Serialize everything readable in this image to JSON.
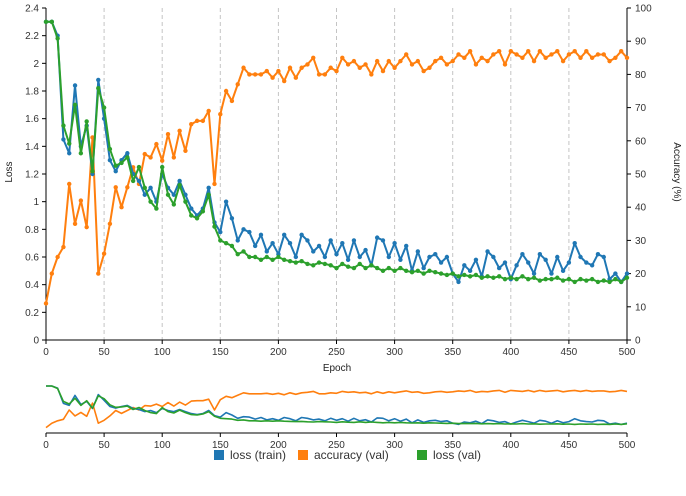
{
  "chart_data": {
    "type": "line",
    "title": "",
    "xlabel": "Epoch",
    "ylabel_left": "Loss",
    "ylabel_right": "Accuracy (%)",
    "xlim": [
      0,
      500
    ],
    "ylim_left": [
      0,
      2.4
    ],
    "ylim_right": [
      0,
      100
    ],
    "x_ticks": [
      0,
      50,
      100,
      150,
      200,
      250,
      300,
      350,
      400,
      450,
      500
    ],
    "y_left_ticks": [
      0,
      0.2,
      0.4,
      0.6,
      0.8,
      1,
      1.2,
      1.4,
      1.6,
      1.8,
      2,
      2.2,
      2.4
    ],
    "y_right_ticks": [
      0,
      10,
      20,
      30,
      40,
      50,
      60,
      70,
      80,
      90,
      100
    ],
    "grid": "vertical dashed lines at x ticks",
    "colors": {
      "loss_train": "#1f77b4",
      "accuracy_val": "#ff7f0e",
      "loss_val": "#2ca02c"
    },
    "legend": [
      "loss (train)",
      "accuracy (val)",
      "loss (val)"
    ],
    "legend_position": "bottom-center",
    "overview_panel": "mini overview below main chart showing all three series over epochs 0-500",
    "series": [
      {
        "name": "loss (train)",
        "axis": "left",
        "x": [
          0,
          5,
          10,
          15,
          20,
          25,
          30,
          35,
          40,
          45,
          50,
          55,
          60,
          65,
          70,
          75,
          80,
          85,
          90,
          95,
          100,
          105,
          110,
          115,
          120,
          125,
          130,
          135,
          140,
          145,
          150,
          155,
          160,
          165,
          170,
          175,
          180,
          185,
          190,
          195,
          200,
          205,
          210,
          215,
          220,
          225,
          230,
          235,
          240,
          245,
          250,
          255,
          260,
          265,
          270,
          275,
          280,
          285,
          290,
          295,
          300,
          305,
          310,
          315,
          320,
          325,
          330,
          335,
          340,
          345,
          350,
          355,
          360,
          365,
          370,
          375,
          380,
          385,
          390,
          395,
          400,
          405,
          410,
          415,
          420,
          425,
          430,
          435,
          440,
          445,
          450,
          455,
          460,
          465,
          470,
          475,
          480,
          485,
          490,
          495,
          500
        ],
        "values": [
          2.3,
          2.3,
          2.2,
          1.45,
          1.35,
          1.84,
          1.4,
          1.55,
          1.2,
          1.88,
          1.6,
          1.3,
          1.22,
          1.3,
          1.35,
          1.2,
          1.15,
          1.05,
          1.1,
          1.0,
          1.2,
          1.1,
          1.05,
          1.15,
          1.05,
          0.95,
          0.9,
          0.95,
          1.1,
          0.85,
          0.78,
          1.0,
          0.88,
          0.72,
          0.8,
          0.78,
          0.68,
          0.76,
          0.64,
          0.7,
          0.62,
          0.76,
          0.7,
          0.6,
          0.76,
          0.72,
          0.64,
          0.68,
          0.6,
          0.72,
          0.62,
          0.7,
          0.58,
          0.72,
          0.6,
          0.65,
          0.54,
          0.74,
          0.72,
          0.6,
          0.7,
          0.58,
          0.68,
          0.5,
          0.64,
          0.52,
          0.6,
          0.62,
          0.56,
          0.6,
          0.48,
          0.42,
          0.54,
          0.5,
          0.58,
          0.46,
          0.64,
          0.6,
          0.52,
          0.56,
          0.44,
          0.54,
          0.62,
          0.56,
          0.48,
          0.62,
          0.58,
          0.48,
          0.6,
          0.5,
          0.56,
          0.7,
          0.6,
          0.56,
          0.54,
          0.62,
          0.6,
          0.44,
          0.48,
          0.42,
          0.48
        ]
      },
      {
        "name": "accuracy (val)",
        "axis": "right",
        "x": [
          0,
          5,
          10,
          15,
          20,
          25,
          30,
          35,
          40,
          45,
          50,
          55,
          60,
          65,
          70,
          75,
          80,
          85,
          90,
          95,
          100,
          105,
          110,
          115,
          120,
          125,
          130,
          135,
          140,
          145,
          150,
          155,
          160,
          165,
          170,
          175,
          180,
          185,
          190,
          195,
          200,
          205,
          210,
          215,
          220,
          225,
          230,
          235,
          240,
          245,
          250,
          255,
          260,
          265,
          270,
          275,
          280,
          285,
          290,
          295,
          300,
          305,
          310,
          315,
          320,
          325,
          330,
          335,
          340,
          345,
          350,
          355,
          360,
          365,
          370,
          375,
          380,
          385,
          390,
          395,
          400,
          405,
          410,
          415,
          420,
          425,
          430,
          435,
          440,
          445,
          450,
          455,
          460,
          465,
          470,
          475,
          480,
          485,
          490,
          495,
          500
        ],
        "values": [
          11,
          20,
          25,
          28,
          47,
          35,
          42,
          34,
          61,
          20,
          26,
          35,
          46,
          40,
          46,
          52,
          47,
          56,
          55,
          59,
          54,
          62,
          55,
          63,
          57,
          65,
          66,
          66,
          69,
          47,
          68,
          75,
          72,
          77,
          82,
          80,
          80,
          80,
          81,
          79,
          81,
          78,
          82,
          79,
          82,
          83,
          85,
          80,
          80,
          82,
          81,
          85,
          83,
          84,
          82,
          83,
          80,
          84,
          81,
          84,
          82,
          84,
          86,
          83,
          84,
          81,
          82,
          84,
          85,
          83,
          84,
          86,
          85,
          87,
          83,
          85,
          84,
          86,
          87,
          83,
          87,
          86,
          85,
          87,
          84,
          87,
          85,
          86,
          87,
          84,
          86,
          87,
          85,
          87,
          85,
          86,
          86,
          84,
          85,
          87,
          85
        ]
      },
      {
        "name": "loss (val)",
        "axis": "left",
        "x": [
          0,
          5,
          10,
          15,
          20,
          25,
          30,
          35,
          40,
          45,
          50,
          55,
          60,
          65,
          70,
          75,
          80,
          85,
          90,
          95,
          100,
          105,
          110,
          115,
          120,
          125,
          130,
          135,
          140,
          145,
          150,
          155,
          160,
          165,
          170,
          175,
          180,
          185,
          190,
          195,
          200,
          205,
          210,
          215,
          220,
          225,
          230,
          235,
          240,
          245,
          250,
          255,
          260,
          265,
          270,
          275,
          280,
          285,
          290,
          295,
          300,
          305,
          310,
          315,
          320,
          325,
          330,
          335,
          340,
          345,
          350,
          355,
          360,
          365,
          370,
          375,
          380,
          385,
          390,
          395,
          400,
          405,
          410,
          415,
          420,
          425,
          430,
          435,
          440,
          445,
          450,
          455,
          460,
          465,
          470,
          475,
          480,
          485,
          490,
          495,
          500
        ],
        "values": [
          2.3,
          2.3,
          2.18,
          1.55,
          1.42,
          1.7,
          1.35,
          1.58,
          1.22,
          1.82,
          1.68,
          1.38,
          1.26,
          1.28,
          1.32,
          1.15,
          1.25,
          1.1,
          1.0,
          0.95,
          1.25,
          1.05,
          0.98,
          1.12,
          1.0,
          0.9,
          0.88,
          0.93,
          1.05,
          0.82,
          0.72,
          0.7,
          0.68,
          0.62,
          0.64,
          0.6,
          0.6,
          0.58,
          0.6,
          0.58,
          0.6,
          0.58,
          0.57,
          0.56,
          0.57,
          0.55,
          0.54,
          0.56,
          0.55,
          0.54,
          0.52,
          0.55,
          0.53,
          0.52,
          0.55,
          0.52,
          0.54,
          0.52,
          0.5,
          0.52,
          0.5,
          0.52,
          0.5,
          0.49,
          0.5,
          0.48,
          0.5,
          0.49,
          0.48,
          0.47,
          0.48,
          0.46,
          0.47,
          0.46,
          0.47,
          0.45,
          0.46,
          0.45,
          0.46,
          0.44,
          0.45,
          0.44,
          0.46,
          0.44,
          0.45,
          0.43,
          0.44,
          0.44,
          0.45,
          0.43,
          0.44,
          0.42,
          0.44,
          0.43,
          0.44,
          0.42,
          0.43,
          0.42,
          0.44,
          0.42,
          0.45
        ]
      }
    ]
  }
}
